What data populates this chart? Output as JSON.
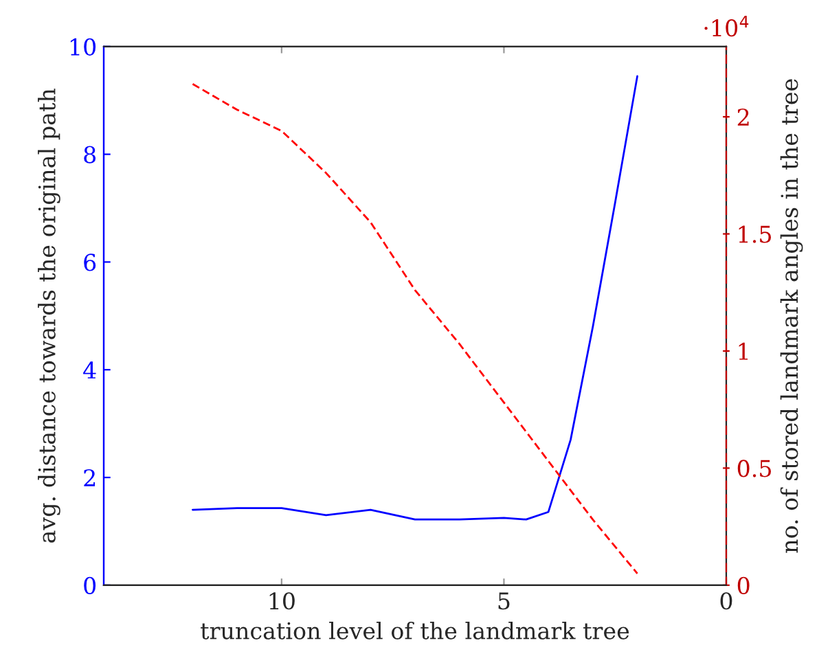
{
  "chart_data": {
    "type": "line",
    "xlabel": "truncation level of the landmark tree",
    "ylabel": "avg. distance towards the original path",
    "y2label": "no. of stored landmark angles in the tree",
    "xlim": [
      14,
      0
    ],
    "xticks": [
      10,
      5,
      0
    ],
    "ylim": [
      0,
      10
    ],
    "yticks": [
      0,
      2,
      4,
      6,
      8,
      10
    ],
    "y2lim": [
      0,
      2.3
    ],
    "y2ticks": [
      0,
      0.5,
      1,
      1.5,
      2
    ],
    "annotations": [
      "·10$^{4}$"
    ],
    "grid": false,
    "legend": false,
    "series": [
      {
        "color": "#0000ff",
        "line_style": "solid",
        "x": [
          12,
          11,
          10,
          9,
          8,
          7,
          6,
          5,
          4.5,
          4,
          3.5,
          3,
          2.5,
          2
        ],
        "values": [
          1.4,
          1.43,
          1.43,
          1.3,
          1.4,
          1.22,
          1.22,
          1.25,
          1.22,
          1.36,
          2.7,
          4.8,
          7.1,
          9.45
        ]
      },
      {
        "color": "#ff0000",
        "line_style": "dashed",
        "axis": "y2",
        "x": [
          12,
          11,
          10,
          9,
          8,
          7,
          6,
          5,
          4,
          3,
          2
        ],
        "values": [
          2.14,
          2.03,
          1.94,
          1.76,
          1.55,
          1.26,
          1.03,
          0.78,
          0.53,
          0.28,
          0.05
        ]
      }
    ]
  }
}
